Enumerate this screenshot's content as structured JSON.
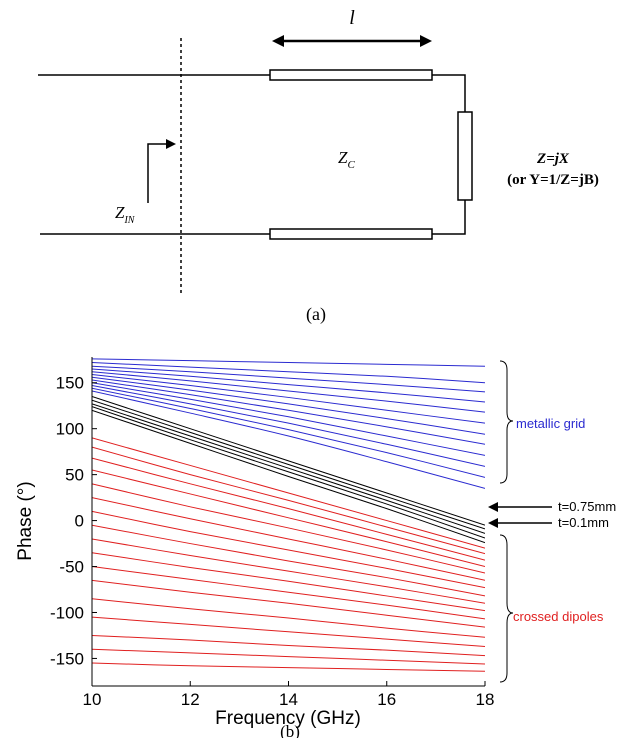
{
  "diagram": {
    "length_label": "l",
    "zc_main": "Z",
    "zc_sub": "C",
    "zin_main": "Z",
    "zin_sub": "IN",
    "load_line1": "Z=jX",
    "load_line2": "(or Y=1/Z=jB)",
    "caption": "(a)"
  },
  "caption_b": "(b)",
  "chart_data": {
    "type": "line",
    "title": "",
    "xlabel": "Frequency (GHz)",
    "ylabel": "Phase (°)",
    "xlim": [
      10,
      18
    ],
    "ylim": [
      -180,
      178
    ],
    "xticks": [
      "10",
      "12",
      "14",
      "16",
      "18"
    ],
    "yticks": [
      "150",
      "100",
      "50",
      "0",
      "-50",
      "-100",
      "-150"
    ],
    "grid": false,
    "colors": {
      "metallic": "#2b2bd0",
      "thickness": "#000000",
      "dipoles": "#e02020"
    },
    "groups": [
      {
        "name": "metallic grid",
        "color": "#2b2bd0",
        "series": [
          {
            "x": [
              10,
              12,
              14,
              16,
              18
            ],
            "y": [
              176,
              174,
              172,
              170,
              168
            ]
          },
          {
            "x": [
              10,
              12,
              14,
              16,
              18
            ],
            "y": [
              172,
              167,
              162,
              157,
              150
            ]
          },
          {
            "x": [
              10,
              12,
              14,
              16,
              18
            ],
            "y": [
              168,
              162,
              155,
              148,
              140
            ]
          },
          {
            "x": [
              10,
              12,
              14,
              16,
              18
            ],
            "y": [
              165,
              157,
              148,
              139,
              129
            ]
          },
          {
            "x": [
              10,
              12,
              14,
              16,
              18
            ],
            "y": [
              162,
              152,
              141,
              130,
              118
            ]
          },
          {
            "x": [
              10,
              12,
              14,
              16,
              18
            ],
            "y": [
              159,
              147,
              134,
              120,
              106
            ]
          },
          {
            "x": [
              10,
              12,
              14,
              16,
              18
            ],
            "y": [
              156,
              142,
              127,
              111,
              94
            ]
          },
          {
            "x": [
              10,
              12,
              14,
              16,
              18
            ],
            "y": [
              153,
              137,
              120,
              102,
              83
            ]
          },
          {
            "x": [
              10,
              12,
              14,
              16,
              18
            ],
            "y": [
              150,
              132,
              113,
              92,
              71
            ]
          },
          {
            "x": [
              10,
              12,
              14,
              16,
              18
            ],
            "y": [
              147,
              127,
              106,
              83,
              59
            ]
          },
          {
            "x": [
              10,
              12,
              14,
              16,
              18
            ],
            "y": [
              144,
              122,
              99,
              74,
              47
            ]
          },
          {
            "x": [
              10,
              12,
              14,
              16,
              18
            ],
            "y": [
              141,
              117,
              92,
              64,
              35
            ]
          }
        ]
      },
      {
        "name": "thickness",
        "color": "#000000",
        "series": [
          {
            "x": [
              10,
              12,
              14,
              16,
              18
            ],
            "y": [
              135,
              100,
              65,
              30,
              -5
            ]
          },
          {
            "x": [
              10,
              12,
              14,
              16,
              18
            ],
            "y": [
              131,
              96,
              61,
              26,
              -9
            ]
          },
          {
            "x": [
              10,
              12,
              14,
              16,
              18
            ],
            "y": [
              127,
              92,
              57,
              22,
              -14
            ]
          },
          {
            "x": [
              10,
              12,
              14,
              16,
              18
            ],
            "y": [
              124,
              88,
              53,
              18,
              -19
            ]
          },
          {
            "x": [
              10,
              12,
              14,
              16,
              18
            ],
            "y": [
              120,
              84,
              48,
              13,
              -24
            ]
          }
        ]
      },
      {
        "name": "crossed dipoles",
        "color": "#e02020",
        "series": [
          {
            "x": [
              10,
              12,
              14,
              16,
              18
            ],
            "y": [
              90,
              60,
              30,
              0,
              -30
            ]
          },
          {
            "x": [
              10,
              12,
              14,
              16,
              18
            ],
            "y": [
              80,
              50,
              22,
              -7,
              -36
            ]
          },
          {
            "x": [
              10,
              12,
              14,
              16,
              18
            ],
            "y": [
              68,
              40,
              13,
              -15,
              -43
            ]
          },
          {
            "x": [
              10,
              12,
              14,
              16,
              18
            ],
            "y": [
              55,
              29,
              3,
              -23,
              -50
            ]
          },
          {
            "x": [
              10,
              12,
              14,
              16,
              18
            ],
            "y": [
              40,
              15,
              -8,
              -32,
              -57
            ]
          },
          {
            "x": [
              10,
              12,
              14,
              16,
              18
            ],
            "y": [
              25,
              2,
              -20,
              -42,
              -65
            ]
          },
          {
            "x": [
              10,
              12,
              14,
              16,
              18
            ],
            "y": [
              10,
              -12,
              -32,
              -52,
              -73
            ]
          },
          {
            "x": [
              10,
              12,
              14,
              16,
              18
            ],
            "y": [
              -5,
              -25,
              -44,
              -62,
              -82
            ]
          },
          {
            "x": [
              10,
              12,
              14,
              16,
              18
            ],
            "y": [
              -20,
              -38,
              -55,
              -72,
              -90
            ]
          },
          {
            "x": [
              10,
              12,
              14,
              16,
              18
            ],
            "y": [
              -35,
              -51,
              -66,
              -82,
              -98
            ]
          },
          {
            "x": [
              10,
              12,
              14,
              16,
              18
            ],
            "y": [
              -50,
              -64,
              -78,
              -92,
              -107
            ]
          },
          {
            "x": [
              10,
              12,
              14,
              16,
              18
            ],
            "y": [
              -65,
              -78,
              -90,
              -103,
              -116
            ]
          },
          {
            "x": [
              10,
              12,
              14,
              16,
              18
            ],
            "y": [
              -85,
              -96,
              -106,
              -117,
              -127
            ]
          },
          {
            "x": [
              10,
              12,
              14,
              16,
              18
            ],
            "y": [
              -105,
              -113,
              -121,
              -129,
              -137
            ]
          },
          {
            "x": [
              10,
              12,
              14,
              16,
              18
            ],
            "y": [
              -125,
              -130,
              -136,
              -141,
              -147
            ]
          },
          {
            "x": [
              10,
              12,
              14,
              16,
              18
            ],
            "y": [
              -140,
              -144,
              -148,
              -152,
              -156
            ]
          },
          {
            "x": [
              10,
              12,
              14,
              16,
              18
            ],
            "y": [
              -155,
              -158,
              -160,
              -162,
              -164
            ]
          }
        ]
      }
    ],
    "annotations": [
      {
        "text": "metallic grid",
        "color": "#2b2bd0"
      },
      {
        "text": "t=0.75mm",
        "color": "#000000"
      },
      {
        "text": "t=0.1mm",
        "color": "#000000"
      },
      {
        "text": "crossed dipoles",
        "color": "#e02020"
      }
    ]
  }
}
